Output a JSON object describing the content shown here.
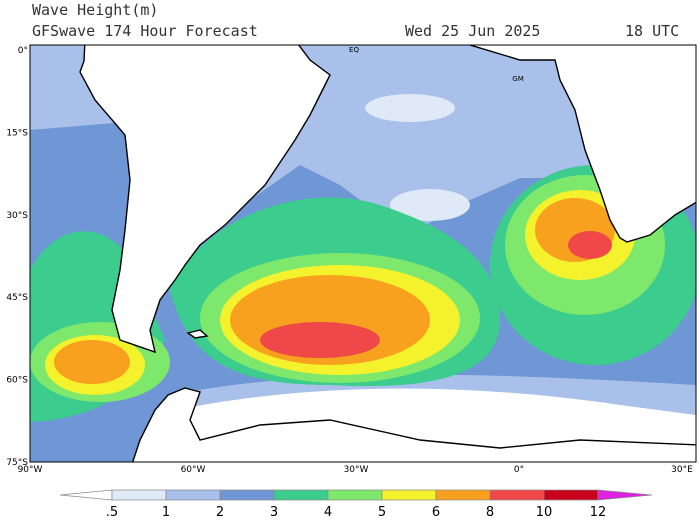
{
  "header": {
    "title": "Wave Height(m)",
    "subtitle": "GFSwave 174 Hour Forecast",
    "date": "Wed 25 Jun 2025",
    "time": "18 UTC"
  },
  "axes": {
    "lat_labels": [
      "0°",
      "15°S",
      "30°S",
      "45°S",
      "60°S",
      "75°S"
    ],
    "lon_labels": [
      "90°W",
      "60°W",
      "30°W",
      "0°",
      "30°E"
    ]
  },
  "map_labels": [
    "EQ",
    "GM"
  ],
  "colorbar": {
    "labels": [
      ".5",
      "1",
      "2",
      "3",
      "4",
      "5",
      "6",
      "8",
      "10",
      "12"
    ],
    "colors": [
      "#ffffff",
      "#dfe9f8",
      "#a9c0ea",
      "#6f97d6",
      "#3ccc8e",
      "#7de86b",
      "#f4f22c",
      "#f8a11f",
      "#f04848",
      "#c8001c",
      "#e020e0"
    ]
  }
}
